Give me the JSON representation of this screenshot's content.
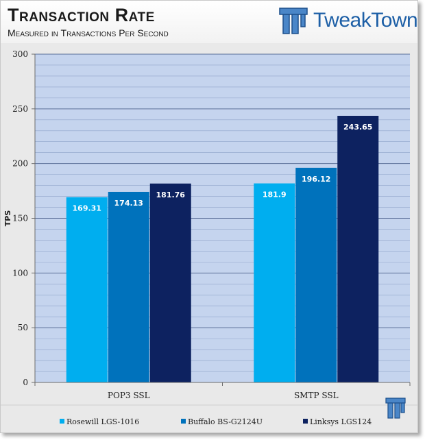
{
  "header": {
    "title": "Transaction Rate",
    "subtitle": "Measured in Transactions Per Second",
    "logo_text": "TweakTown"
  },
  "colors": {
    "plot_background": "#c5d4ee",
    "series": [
      "#00aeef",
      "#0072bc",
      "#0d2260"
    ]
  },
  "chart_data": {
    "type": "bar",
    "title": "Transaction Rate",
    "subtitle": "Measured in Transactions Per Second",
    "xlabel": "",
    "ylabel": "TPS",
    "ylim": [
      0,
      300
    ],
    "yticks": [
      0,
      50,
      100,
      150,
      200,
      250,
      300
    ],
    "categories": [
      "POP3 SSL",
      "SMTP SSL"
    ],
    "series": [
      {
        "name": "Rosewill LGS-1016",
        "values": [
          169.31,
          181.9
        ]
      },
      {
        "name": "Buffalo BS-G2124U",
        "values": [
          174.13,
          196.12
        ]
      },
      {
        "name": "Linksys LGS124",
        "values": [
          181.76,
          243.65
        ]
      }
    ],
    "grid": true,
    "legend": "bottom"
  }
}
